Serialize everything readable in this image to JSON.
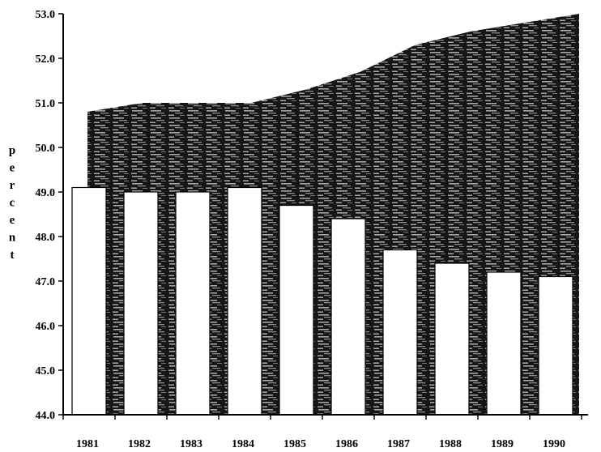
{
  "chart_data": {
    "type": "bar",
    "categories": [
      "1981",
      "1982",
      "1983",
      "1984",
      "1985",
      "1986",
      "1987",
      "1988",
      "1989",
      "1990"
    ],
    "series": [
      {
        "type": "area",
        "values": [
          50.8,
          51.0,
          51.0,
          51.0,
          51.3,
          51.7,
          52.3,
          52.6,
          52.8,
          53.0
        ]
      },
      {
        "type": "bar",
        "values": [
          49.1,
          49.0,
          49.0,
          49.1,
          48.7,
          48.4,
          47.7,
          47.4,
          47.2,
          47.1
        ]
      }
    ],
    "title": "",
    "xlabel": "",
    "ylabel": "percent",
    "ylim": [
      44.0,
      53.0
    ],
    "yticks": [
      "44.0",
      "45.0",
      "46.0",
      "47.0",
      "48.0",
      "49.0",
      "50.0",
      "51.0",
      "52.0",
      "53.0"
    ],
    "grid": false,
    "colors": {
      "area": "#111111",
      "area_texture": "#9a9a9a",
      "bar_fill": "#ffffff",
      "bar_stroke": "#000000"
    }
  }
}
